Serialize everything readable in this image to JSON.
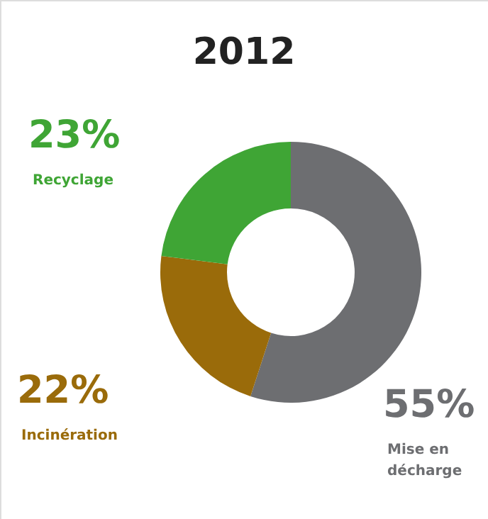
{
  "chart_data": {
    "type": "donut",
    "title": "2012",
    "categories": [
      "Mise en décharge",
      "Incinération",
      "Recyclage"
    ],
    "values": [
      55,
      22,
      23
    ],
    "colors": [
      "#6d6e71",
      "#9a6b0a",
      "#3fa535"
    ],
    "value_labels": [
      "55%",
      "22%",
      "23%"
    ],
    "legend": false
  }
}
